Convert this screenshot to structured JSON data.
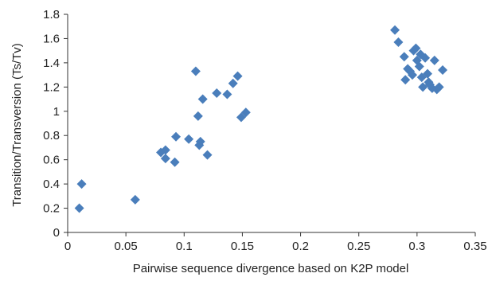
{
  "chart_data": {
    "type": "scatter",
    "title": "",
    "xlabel": "Pairwise sequence divergence based on K2P model",
    "ylabel": "Transition/Transversion (Ts/Tv)",
    "xlim": [
      0,
      0.35
    ],
    "ylim": [
      0,
      1.8
    ],
    "x_ticks": [
      "0",
      "0.05",
      "0.1",
      "0.15",
      "0.2",
      "0.25",
      "0.3",
      "0.35"
    ],
    "y_ticks": [
      "0",
      "0.2",
      "0.4",
      "0.6",
      "0.8",
      "1",
      "1.2",
      "1.4",
      "1.6",
      "1.8"
    ],
    "grid": false,
    "legend": "none",
    "marker": "diamond",
    "marker_color": "#4a7ebb",
    "series": [
      {
        "points": [
          [
            0.012,
            0.4
          ],
          [
            0.01,
            0.2
          ],
          [
            0.058,
            0.27
          ],
          [
            0.08,
            0.66
          ],
          [
            0.084,
            0.68
          ],
          [
            0.084,
            0.61
          ],
          [
            0.093,
            0.79
          ],
          [
            0.092,
            0.58
          ],
          [
            0.104,
            0.77
          ],
          [
            0.11,
            1.33
          ],
          [
            0.112,
            0.96
          ],
          [
            0.113,
            0.72
          ],
          [
            0.114,
            0.75
          ],
          [
            0.116,
            1.1
          ],
          [
            0.12,
            0.64
          ],
          [
            0.128,
            1.15
          ],
          [
            0.137,
            1.14
          ],
          [
            0.142,
            1.23
          ],
          [
            0.146,
            1.29
          ],
          [
            0.149,
            0.95
          ],
          [
            0.153,
            0.99
          ],
          [
            0.281,
            1.67
          ],
          [
            0.284,
            1.57
          ],
          [
            0.289,
            1.45
          ],
          [
            0.29,
            1.26
          ],
          [
            0.292,
            1.35
          ],
          [
            0.294,
            1.33
          ],
          [
            0.296,
            1.3
          ],
          [
            0.297,
            1.5
          ],
          [
            0.299,
            1.52
          ],
          [
            0.3,
            1.42
          ],
          [
            0.302,
            1.37
          ],
          [
            0.303,
            1.47
          ],
          [
            0.304,
            1.28
          ],
          [
            0.305,
            1.2
          ],
          [
            0.307,
            1.44
          ],
          [
            0.309,
            1.31
          ],
          [
            0.31,
            1.24
          ],
          [
            0.311,
            1.22
          ],
          [
            0.313,
            1.19
          ],
          [
            0.315,
            1.42
          ],
          [
            0.317,
            1.18
          ],
          [
            0.319,
            1.2
          ],
          [
            0.322,
            1.34
          ]
        ]
      }
    ]
  }
}
